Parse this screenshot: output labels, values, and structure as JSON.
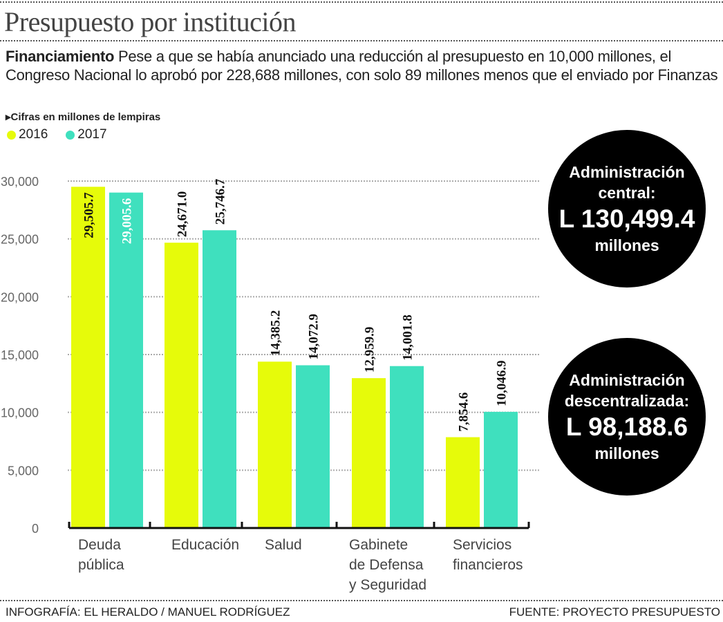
{
  "header": {
    "title": "Presupuesto por institución",
    "intro_lead": "Financiamiento",
    "intro_text": " Pese a que se había anunciado una reducción al presupuesto en 10,000 millones, el Congreso Nacional lo aprobó por 228,688 millones, con solo 89 millones menos que el enviado por Finanzas",
    "units": "▸Cifras en millones de lempiras"
  },
  "chart_data": {
    "type": "bar",
    "categories": [
      "Deuda\npública",
      "Educación",
      "Salud",
      "Gabinete\nde Defensa\ny Seguridad",
      "Servicios\nfinancieros"
    ],
    "series": [
      {
        "name": "2016",
        "color": "#e6fb0a",
        "values": [
          29505.7,
          24671.0,
          14385.2,
          12959.9,
          7854.6
        ],
        "labels": [
          "29,505.7",
          "24,671.0",
          "14,385.2",
          "12,959.9",
          "7,854.6"
        ]
      },
      {
        "name": "2017",
        "color": "#3fe0be",
        "values": [
          29005.6,
          25746.7,
          14072.9,
          14001.8,
          10046.9
        ],
        "labels": [
          "29,005.6",
          "25,746.7",
          "14,072.9",
          "14,001.8",
          "10,046.9"
        ]
      }
    ],
    "yticks": [
      "0",
      "5,000",
      "10,000",
      "15,000",
      "20,000",
      "25,000",
      "30,000"
    ],
    "ylim": [
      0,
      30000
    ],
    "grid": true,
    "legend": "top-left"
  },
  "callouts": [
    {
      "label": "Administración central:",
      "amount": "L 130,499.4",
      "unit": "millones"
    },
    {
      "label": "Administración descentralizada:",
      "amount": "L 98,188.6",
      "unit": "millones"
    }
  ],
  "footer": {
    "credit": "INFOGRAFÍA: EL HERALDO / MANUEL RODRÍGUEZ",
    "source": "FUENTE: PROYECTO PRESUPUESTO"
  }
}
